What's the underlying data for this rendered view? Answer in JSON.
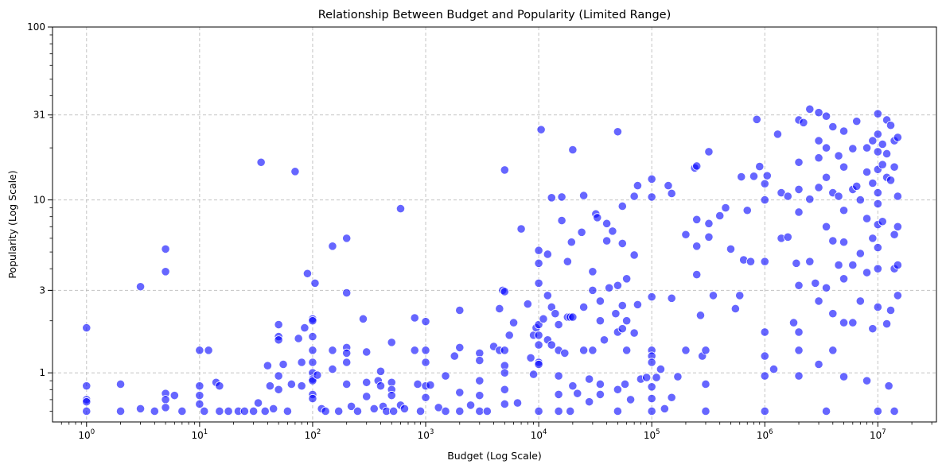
{
  "chart_data": {
    "type": "scatter",
    "title": "Relationship Between Budget and Popularity (Limited Range)",
    "xlabel": "Budget (Log Scale)",
    "ylabel": "Popularity (Log Scale)",
    "xscale": "log",
    "yscale": "log",
    "xlim": [
      0.5,
      33000000
    ],
    "ylim": [
      0.52,
      100
    ],
    "grid": true,
    "point_color": "#0000ff",
    "point_opacity": 0.6,
    "x_ticks": [
      {
        "value": 1,
        "base": "10",
        "exp": "0"
      },
      {
        "value": 10,
        "base": "10",
        "exp": "1"
      },
      {
        "value": 100,
        "base": "10",
        "exp": "2"
      },
      {
        "value": 1000,
        "base": "10",
        "exp": "3"
      },
      {
        "value": 10000,
        "base": "10",
        "exp": "4"
      },
      {
        "value": 100000,
        "base": "10",
        "exp": "5"
      },
      {
        "value": 1000000,
        "base": "10",
        "exp": "6"
      },
      {
        "value": 10000000,
        "base": "10",
        "exp": "7"
      }
    ],
    "y_ticks": [
      {
        "value": 1,
        "label": "1"
      },
      {
        "value": 3,
        "label": "3"
      },
      {
        "value": 10,
        "label": "10"
      },
      {
        "value": 31,
        "label": "31"
      },
      {
        "value": 100,
        "label": "100"
      }
    ],
    "points": [
      [
        1,
        1.82
      ],
      [
        1,
        0.84
      ],
      [
        1,
        0.7
      ],
      [
        1,
        0.68
      ],
      [
        1,
        0.6
      ],
      [
        2,
        0.86
      ],
      [
        2,
        0.6
      ],
      [
        3,
        3.15
      ],
      [
        3,
        0.62
      ],
      [
        4,
        0.6
      ],
      [
        5,
        5.2
      ],
      [
        5,
        3.85
      ],
      [
        5,
        0.76
      ],
      [
        5,
        0.7
      ],
      [
        5,
        0.63
      ],
      [
        6,
        0.74
      ],
      [
        7,
        0.6
      ],
      [
        10,
        1.35
      ],
      [
        10,
        0.84
      ],
      [
        10,
        0.74
      ],
      [
        10,
        0.66
      ],
      [
        11,
        0.6
      ],
      [
        12,
        1.35
      ],
      [
        14,
        0.88
      ],
      [
        15,
        0.84
      ],
      [
        15,
        0.6
      ],
      [
        18,
        0.6
      ],
      [
        22,
        0.6
      ],
      [
        25,
        0.6
      ],
      [
        30,
        0.6
      ],
      [
        33,
        0.67
      ],
      [
        35,
        16.5
      ],
      [
        38,
        0.6
      ],
      [
        40,
        1.1
      ],
      [
        42,
        0.84
      ],
      [
        45,
        0.62
      ],
      [
        50,
        1.9
      ],
      [
        50,
        1.62
      ],
      [
        50,
        1.55
      ],
      [
        50,
        0.96
      ],
      [
        50,
        0.8
      ],
      [
        55,
        1.12
      ],
      [
        60,
        0.6
      ],
      [
        65,
        0.86
      ],
      [
        70,
        14.6
      ],
      [
        75,
        1.58
      ],
      [
        80,
        1.15
      ],
      [
        80,
        0.84
      ],
      [
        85,
        1.82
      ],
      [
        90,
        3.75
      ],
      [
        100,
        2.05
      ],
      [
        100,
        2.0
      ],
      [
        100,
        1.62
      ],
      [
        100,
        1.35
      ],
      [
        100,
        1.15
      ],
      [
        100,
        1.0
      ],
      [
        100,
        0.92
      ],
      [
        100,
        0.9
      ],
      [
        100,
        0.75
      ],
      [
        100,
        0.71
      ],
      [
        105,
        3.3
      ],
      [
        110,
        0.97
      ],
      [
        120,
        0.62
      ],
      [
        130,
        0.6
      ],
      [
        150,
        5.4
      ],
      [
        150,
        1.35
      ],
      [
        150,
        1.05
      ],
      [
        170,
        0.6
      ],
      [
        200,
        6.0
      ],
      [
        200,
        2.9
      ],
      [
        200,
        1.4
      ],
      [
        200,
        1.3
      ],
      [
        200,
        1.15
      ],
      [
        200,
        0.86
      ],
      [
        220,
        0.64
      ],
      [
        250,
        0.6
      ],
      [
        280,
        2.05
      ],
      [
        300,
        1.32
      ],
      [
        300,
        0.88
      ],
      [
        300,
        0.73
      ],
      [
        350,
        0.62
      ],
      [
        380,
        0.9
      ],
      [
        400,
        1.02
      ],
      [
        400,
        0.84
      ],
      [
        420,
        0.64
      ],
      [
        450,
        0.6
      ],
      [
        500,
        1.5
      ],
      [
        500,
        0.88
      ],
      [
        500,
        0.8
      ],
      [
        500,
        0.74
      ],
      [
        520,
        0.6
      ],
      [
        600,
        8.9
      ],
      [
        600,
        0.65
      ],
      [
        650,
        0.62
      ],
      [
        800,
        2.08
      ],
      [
        800,
        1.35
      ],
      [
        850,
        0.86
      ],
      [
        900,
        0.6
      ],
      [
        1000,
        1.98
      ],
      [
        1000,
        1.35
      ],
      [
        1000,
        1.15
      ],
      [
        1000,
        0.84
      ],
      [
        1000,
        0.72
      ],
      [
        1100,
        0.85
      ],
      [
        1300,
        0.63
      ],
      [
        1500,
        0.96
      ],
      [
        1500,
        0.6
      ],
      [
        1800,
        1.25
      ],
      [
        2000,
        2.3
      ],
      [
        2000,
        1.4
      ],
      [
        2000,
        0.77
      ],
      [
        2000,
        0.6
      ],
      [
        2500,
        0.65
      ],
      [
        3000,
        1.3
      ],
      [
        3000,
        1.18
      ],
      [
        3000,
        0.9
      ],
      [
        3000,
        0.74
      ],
      [
        3000,
        0.6
      ],
      [
        3500,
        0.6
      ],
      [
        4000,
        1.42
      ],
      [
        4500,
        2.35
      ],
      [
        4500,
        1.35
      ],
      [
        4800,
        3.0
      ],
      [
        5000,
        14.9
      ],
      [
        5000,
        2.95
      ],
      [
        5000,
        1.35
      ],
      [
        5000,
        1.1
      ],
      [
        5000,
        1.0
      ],
      [
        5000,
        0.8
      ],
      [
        5000,
        0.66
      ],
      [
        5500,
        1.65
      ],
      [
        6000,
        1.95
      ],
      [
        6500,
        0.67
      ],
      [
        7000,
        6.8
      ],
      [
        8000,
        2.5
      ],
      [
        8500,
        1.22
      ],
      [
        9000,
        1.65
      ],
      [
        9000,
        0.98
      ],
      [
        9500,
        1.82
      ],
      [
        10000,
        5.1
      ],
      [
        10000,
        4.3
      ],
      [
        10000,
        3.3
      ],
      [
        10000,
        1.9
      ],
      [
        10000,
        1.65
      ],
      [
        10000,
        1.45
      ],
      [
        10000,
        1.15
      ],
      [
        10000,
        1.12
      ],
      [
        10000,
        0.6
      ],
      [
        10500,
        25.5
      ],
      [
        11000,
        2.05
      ],
      [
        12000,
        4.85
      ],
      [
        12000,
        2.8
      ],
      [
        12000,
        1.55
      ],
      [
        13000,
        10.3
      ],
      [
        13000,
        2.4
      ],
      [
        13000,
        1.45
      ],
      [
        14000,
        2.2
      ],
      [
        15000,
        1.9
      ],
      [
        15000,
        1.35
      ],
      [
        15000,
        0.96
      ],
      [
        15000,
        0.75
      ],
      [
        15000,
        0.6
      ],
      [
        16000,
        10.4
      ],
      [
        16000,
        7.6
      ],
      [
        17000,
        1.3
      ],
      [
        18000,
        4.4
      ],
      [
        18000,
        2.1
      ],
      [
        19000,
        2.1
      ],
      [
        19000,
        0.6
      ],
      [
        19500,
        5.7
      ],
      [
        20000,
        19.5
      ],
      [
        20000,
        2.1
      ],
      [
        20000,
        0.84
      ],
      [
        22000,
        0.76
      ],
      [
        24000,
        6.5
      ],
      [
        25000,
        10.6
      ],
      [
        25000,
        2.4
      ],
      [
        25000,
        1.35
      ],
      [
        28000,
        0.92
      ],
      [
        28000,
        0.68
      ],
      [
        30000,
        3.85
      ],
      [
        30000,
        3.0
      ],
      [
        30000,
        1.35
      ],
      [
        32000,
        8.3
      ],
      [
        33000,
        7.9
      ],
      [
        35000,
        2.6
      ],
      [
        35000,
        2.0
      ],
      [
        35000,
        0.86
      ],
      [
        35000,
        0.75
      ],
      [
        38000,
        1.55
      ],
      [
        40000,
        7.3
      ],
      [
        40000,
        5.8
      ],
      [
        42000,
        3.1
      ],
      [
        45000,
        6.6
      ],
      [
        48000,
        2.2
      ],
      [
        50000,
        24.8
      ],
      [
        50000,
        3.2
      ],
      [
        50000,
        1.72
      ],
      [
        50000,
        0.8
      ],
      [
        50000,
        0.6
      ],
      [
        55000,
        5.6
      ],
      [
        55000,
        9.2
      ],
      [
        55000,
        2.45
      ],
      [
        55000,
        1.8
      ],
      [
        58000,
        0.86
      ],
      [
        60000,
        3.5
      ],
      [
        60000,
        2.0
      ],
      [
        60000,
        1.35
      ],
      [
        65000,
        0.7
      ],
      [
        70000,
        10.5
      ],
      [
        70000,
        4.8
      ],
      [
        70000,
        1.7
      ],
      [
        75000,
        12.1
      ],
      [
        75000,
        2.48
      ],
      [
        80000,
        0.92
      ],
      [
        90000,
        0.94
      ],
      [
        100000,
        13.2
      ],
      [
        100000,
        10.4
      ],
      [
        100000,
        2.75
      ],
      [
        100000,
        1.35
      ],
      [
        100000,
        1.25
      ],
      [
        100000,
        1.15
      ],
      [
        100000,
        0.83
      ],
      [
        100000,
        0.71
      ],
      [
        100000,
        0.6
      ],
      [
        110000,
        0.94
      ],
      [
        120000,
        1.05
      ],
      [
        130000,
        0.62
      ],
      [
        140000,
        12.1
      ],
      [
        150000,
        10.9
      ],
      [
        150000,
        2.7
      ],
      [
        150000,
        0.72
      ],
      [
        170000,
        0.95
      ],
      [
        200000,
        6.3
      ],
      [
        200000,
        1.35
      ],
      [
        240000,
        15.3
      ],
      [
        250000,
        15.7
      ],
      [
        250000,
        7.7
      ],
      [
        250000,
        5.4
      ],
      [
        250000,
        3.7
      ],
      [
        270000,
        2.15
      ],
      [
        280000,
        1.25
      ],
      [
        300000,
        1.35
      ],
      [
        300000,
        0.86
      ],
      [
        300000,
        0.6
      ],
      [
        320000,
        7.3
      ],
      [
        320000,
        19.0
      ],
      [
        320000,
        6.1
      ],
      [
        350000,
        2.8
      ],
      [
        400000,
        8.1
      ],
      [
        450000,
        9.0
      ],
      [
        500000,
        5.2
      ],
      [
        550000,
        2.35
      ],
      [
        600000,
        2.8
      ],
      [
        620000,
        13.6
      ],
      [
        650000,
        4.5
      ],
      [
        700000,
        8.7
      ],
      [
        750000,
        4.4
      ],
      [
        800000,
        13.7
      ],
      [
        850000,
        29.2
      ],
      [
        900000,
        15.6
      ],
      [
        1000000,
        12.4
      ],
      [
        1000000,
        10.0
      ],
      [
        1000000,
        4.4
      ],
      [
        1000000,
        1.72
      ],
      [
        1000000,
        1.25
      ],
      [
        1000000,
        0.96
      ],
      [
        1000000,
        0.6
      ],
      [
        1050000,
        13.8
      ],
      [
        1200000,
        1.05
      ],
      [
        1300000,
        24.0
      ],
      [
        1400000,
        11.0
      ],
      [
        1400000,
        6.0
      ],
      [
        1600000,
        10.5
      ],
      [
        1600000,
        6.1
      ],
      [
        1800000,
        1.95
      ],
      [
        1900000,
        4.3
      ],
      [
        2000000,
        29.0
      ],
      [
        2000000,
        16.5
      ],
      [
        2000000,
        11.5
      ],
      [
        2000000,
        8.5
      ],
      [
        2000000,
        3.2
      ],
      [
        2000000,
        1.72
      ],
      [
        2000000,
        1.35
      ],
      [
        2000000,
        0.96
      ],
      [
        2200000,
        28.0
      ],
      [
        2500000,
        33.5
      ],
      [
        2500000,
        10.1
      ],
      [
        2500000,
        4.4
      ],
      [
        2800000,
        3.3
      ],
      [
        3000000,
        32.0
      ],
      [
        3000000,
        22.0
      ],
      [
        3000000,
        17.5
      ],
      [
        3000000,
        11.8
      ],
      [
        3000000,
        2.6
      ],
      [
        3000000,
        1.12
      ],
      [
        3500000,
        30.5
      ],
      [
        3500000,
        20.0
      ],
      [
        3500000,
        13.5
      ],
      [
        3500000,
        7.0
      ],
      [
        3500000,
        3.1
      ],
      [
        3500000,
        0.6
      ],
      [
        4000000,
        26.5
      ],
      [
        4000000,
        11.0
      ],
      [
        4000000,
        5.8
      ],
      [
        4000000,
        2.2
      ],
      [
        4000000,
        1.35
      ],
      [
        4500000,
        18.0
      ],
      [
        4500000,
        10.5
      ],
      [
        4500000,
        4.2
      ],
      [
        5000000,
        25.0
      ],
      [
        5000000,
        15.5
      ],
      [
        5000000,
        8.7
      ],
      [
        5000000,
        5.7
      ],
      [
        5000000,
        3.5
      ],
      [
        5000000,
        1.95
      ],
      [
        5000000,
        0.95
      ],
      [
        6000000,
        19.8
      ],
      [
        6000000,
        11.5
      ],
      [
        6000000,
        4.2
      ],
      [
        6000000,
        1.95
      ],
      [
        6500000,
        28.5
      ],
      [
        6500000,
        12.0
      ],
      [
        7000000,
        10.0
      ],
      [
        7000000,
        4.9
      ],
      [
        7000000,
        2.6
      ],
      [
        8000000,
        20.0
      ],
      [
        8000000,
        14.5
      ],
      [
        8000000,
        7.8
      ],
      [
        8000000,
        3.8
      ],
      [
        8000000,
        0.9
      ],
      [
        9000000,
        22.0
      ],
      [
        9000000,
        12.5
      ],
      [
        9000000,
        6.0
      ],
      [
        9000000,
        1.8
      ],
      [
        10000000,
        31.5
      ],
      [
        10000000,
        24.0
      ],
      [
        10000000,
        19.0
      ],
      [
        10000000,
        15.0
      ],
      [
        10000000,
        11.0
      ],
      [
        10000000,
        9.5
      ],
      [
        10000000,
        7.2
      ],
      [
        10000000,
        5.3
      ],
      [
        10000000,
        4.0
      ],
      [
        10000000,
        2.4
      ],
      [
        10000000,
        0.6
      ],
      [
        11000000,
        21.0
      ],
      [
        11000000,
        16.0
      ],
      [
        11000000,
        7.5
      ],
      [
        12000000,
        29.0
      ],
      [
        12000000,
        18.5
      ],
      [
        12000000,
        13.5
      ],
      [
        12000000,
        1.92
      ],
      [
        12500000,
        0.84
      ],
      [
        13000000,
        27.0
      ],
      [
        13000000,
        13.0
      ],
      [
        13000000,
        2.3
      ],
      [
        14000000,
        22.0
      ],
      [
        14000000,
        15.5
      ],
      [
        14000000,
        6.3
      ],
      [
        14000000,
        4.0
      ],
      [
        14000000,
        0.6
      ],
      [
        15000000,
        23.0
      ],
      [
        15000000,
        10.5
      ],
      [
        15000000,
        7.0
      ],
      [
        15000000,
        4.2
      ],
      [
        15000000,
        2.8
      ]
    ]
  }
}
